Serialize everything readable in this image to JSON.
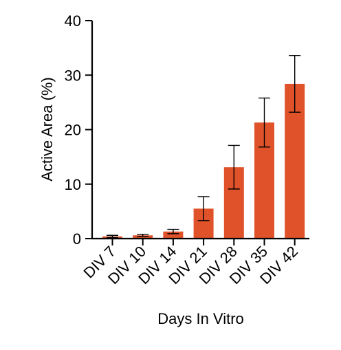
{
  "chart_data": {
    "type": "bar",
    "categories": [
      "DIV 7",
      "DIV 10",
      "DIV 14",
      "DIV 21",
      "DIV 28",
      "DIV 35",
      "DIV 42"
    ],
    "values": [
      0.4,
      0.6,
      1.3,
      5.5,
      13.1,
      21.3,
      28.4
    ],
    "error": [
      0.2,
      0.2,
      0.4,
      2.2,
      4.0,
      4.5,
      5.2
    ],
    "xlabel": "Days In Vitro",
    "ylabel": "Active Area (%)",
    "ylim": [
      0,
      40
    ],
    "yticks": [
      0,
      10,
      20,
      30,
      40
    ],
    "grid": false,
    "legend": "none",
    "bar_color": "#E0522A"
  }
}
